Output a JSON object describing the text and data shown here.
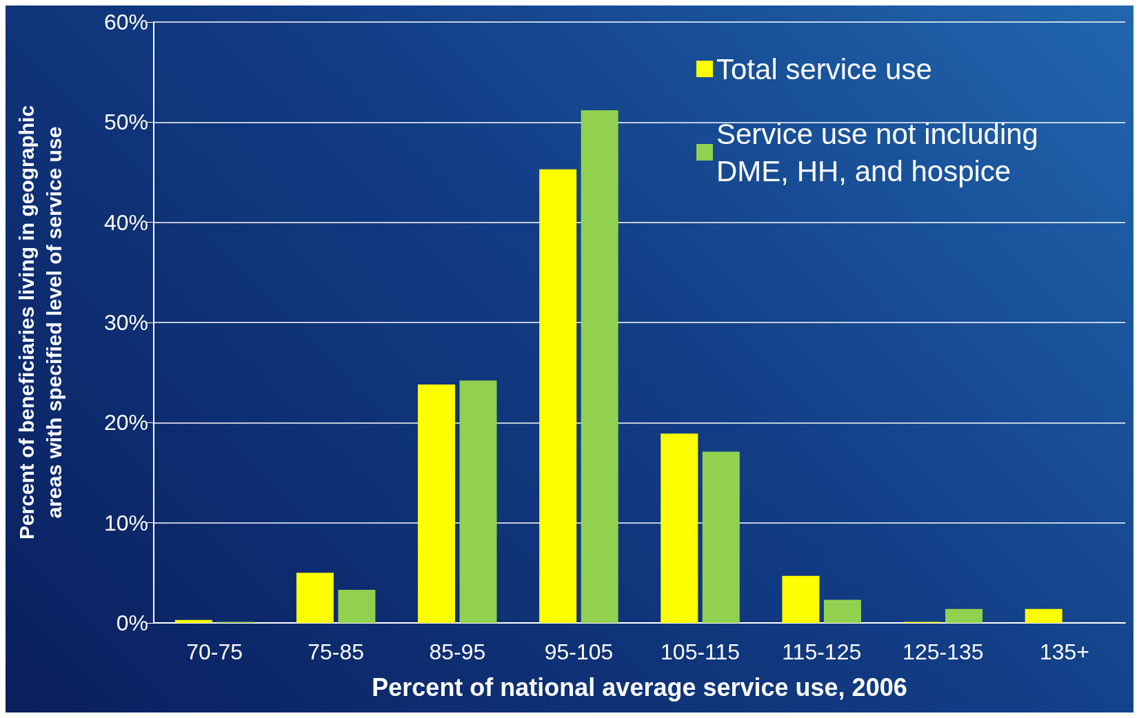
{
  "chart_data": {
    "type": "bar",
    "xlabel": "Percent of national average service use, 2006",
    "ylabel": "Percent of beneficiaries living in geographic\nareas with specified level of service use",
    "categories": [
      "70-75",
      "75-85",
      "85-95",
      "95-105",
      "105-115",
      "115-125",
      "125-135",
      "135+"
    ],
    "series": [
      {
        "name": "Total service use",
        "color": "#ffff00",
        "values": [
          0.3,
          5.0,
          23.8,
          45.3,
          18.9,
          4.7,
          0.1,
          1.4
        ]
      },
      {
        "name": "Service use not including DME, HH, and hospice",
        "color": "#92d050",
        "values": [
          0.1,
          3.3,
          24.2,
          51.2,
          17.1,
          2.3,
          1.4,
          null
        ]
      }
    ],
    "ylim": [
      0,
      60
    ],
    "yticks": [
      {
        "value": 0,
        "label": "0%"
      },
      {
        "value": 10,
        "label": "10%"
      },
      {
        "value": 20,
        "label": "20%"
      },
      {
        "value": 30,
        "label": "30%"
      },
      {
        "value": 40,
        "label": "40%"
      },
      {
        "value": 50,
        "label": "50%"
      },
      {
        "value": 60,
        "label": "60%"
      }
    ],
    "grid": "y",
    "legend": "top right"
  }
}
